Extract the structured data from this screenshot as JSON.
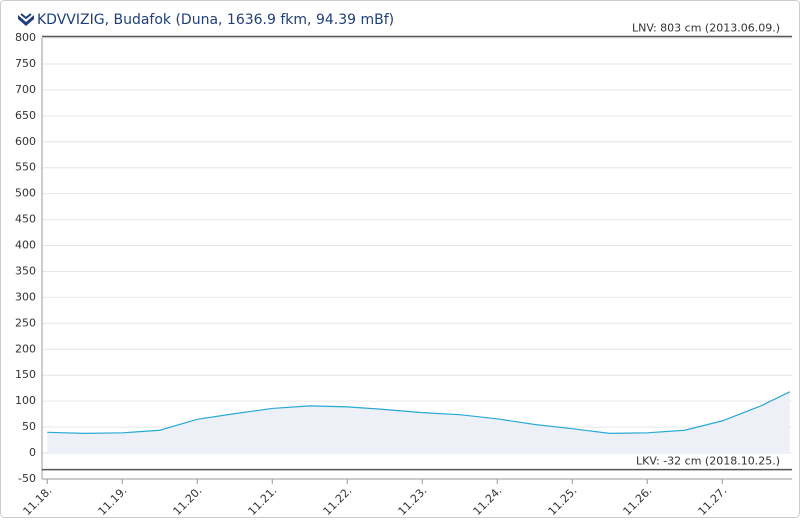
{
  "chart_data": {
    "type": "line",
    "title": "KDVVIZIG, Budafok (Duna, 1636.9 fkm, 94.39 mBf)",
    "x": [
      18,
      18.5,
      19,
      19.5,
      20,
      20.5,
      21,
      21.5,
      22,
      22.5,
      23,
      23.5,
      24,
      24.5,
      25,
      25.5,
      26,
      26.5,
      27,
      27.5,
      27.9
    ],
    "series": [
      {
        "color": "#29a9d6",
        "values": [
          40,
          38,
          39,
          44,
          65,
          76,
          86,
          91,
          89,
          84,
          78,
          74,
          66,
          55,
          47,
          38,
          39,
          44,
          62,
          90,
          118
        ]
      }
    ],
    "xlim": [
      17.93,
      27.93
    ],
    "xticks": [
      {
        "value": 18,
        "label": "11.18."
      },
      {
        "value": 19,
        "label": "11.19."
      },
      {
        "value": 20,
        "label": "11.20."
      },
      {
        "value": 21,
        "label": "11.21."
      },
      {
        "value": 22,
        "label": "11.22."
      },
      {
        "value": 23,
        "label": "11.23."
      },
      {
        "value": 24,
        "label": "11.24."
      },
      {
        "value": 25,
        "label": "11.25."
      },
      {
        "value": 26,
        "label": "11.26."
      },
      {
        "value": 27,
        "label": "11.27."
      }
    ],
    "ylim": [
      -50,
      800
    ],
    "yticks": [
      -50,
      0,
      50,
      100,
      150,
      200,
      250,
      300,
      350,
      400,
      450,
      500,
      550,
      600,
      650,
      700,
      750,
      800
    ],
    "grid": true,
    "reference_lines": [
      {
        "value": 803,
        "label": "LNV: 803 cm (2013.06.09.)"
      },
      {
        "value": -32,
        "label": "LKV: -32 cm (2018.10.25.)"
      }
    ]
  }
}
